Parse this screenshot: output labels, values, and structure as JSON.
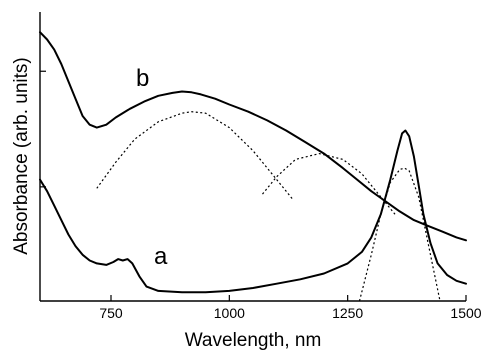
{
  "chart_data": {
    "type": "line",
    "title": "",
    "xlabel": "Wavelength, nm",
    "ylabel": "Absorbance (arb. units)",
    "xlim": [
      600,
      1500
    ],
    "ylim": [
      0,
      1
    ],
    "x_ticks": [
      750,
      1000,
      1250,
      1500
    ],
    "x_tick_labels": [
      "750",
      "1000",
      "1250",
      "1500"
    ],
    "y_ticks": [
      0.395,
      0.795
    ],
    "y_tick_labels": [
      "",
      ""
    ],
    "grid": false,
    "legend": "none",
    "series": [
      {
        "name": "b",
        "style": "solid",
        "x": [
          600,
          615,
          630,
          645,
          660,
          675,
          690,
          705,
          720,
          740,
          760,
          790,
          820,
          850,
          880,
          900,
          920,
          940,
          970,
          1000,
          1040,
          1080,
          1120,
          1160,
          1200,
          1240,
          1270,
          1300,
          1330,
          1360,
          1390,
          1420,
          1450,
          1480,
          1500
        ],
        "y": [
          0.93,
          0.905,
          0.87,
          0.82,
          0.76,
          0.7,
          0.64,
          0.61,
          0.6,
          0.61,
          0.635,
          0.665,
          0.69,
          0.71,
          0.72,
          0.725,
          0.722,
          0.715,
          0.7,
          0.68,
          0.655,
          0.625,
          0.59,
          0.55,
          0.51,
          0.46,
          0.42,
          0.38,
          0.345,
          0.31,
          0.28,
          0.26,
          0.24,
          0.22,
          0.21
        ]
      },
      {
        "name": "a",
        "style": "solid",
        "x": [
          600,
          615,
          630,
          645,
          660,
          675,
          690,
          705,
          720,
          740,
          755,
          765,
          775,
          785,
          795,
          810,
          825,
          850,
          900,
          950,
          1000,
          1050,
          1100,
          1150,
          1200,
          1250,
          1280,
          1300,
          1320,
          1340,
          1355,
          1365,
          1372,
          1380,
          1390,
          1400,
          1410,
          1425,
          1440,
          1460,
          1480,
          1500
        ],
        "y": [
          0.42,
          0.38,
          0.33,
          0.28,
          0.23,
          0.19,
          0.16,
          0.14,
          0.13,
          0.125,
          0.135,
          0.145,
          0.14,
          0.145,
          0.13,
          0.085,
          0.05,
          0.035,
          0.03,
          0.03,
          0.035,
          0.045,
          0.06,
          0.075,
          0.095,
          0.13,
          0.17,
          0.22,
          0.3,
          0.42,
          0.52,
          0.58,
          0.59,
          0.57,
          0.5,
          0.4,
          0.3,
          0.2,
          0.13,
          0.09,
          0.07,
          0.06
        ]
      },
      {
        "name": "",
        "style": "dotted",
        "x": [
          720,
          760,
          800,
          850,
          900,
          920,
          950,
          1000,
          1050,
          1100,
          1135
        ],
        "y": [
          0.39,
          0.48,
          0.56,
          0.62,
          0.65,
          0.655,
          0.65,
          0.6,
          0.52,
          0.42,
          0.35
        ]
      },
      {
        "name": "",
        "style": "dotted",
        "x": [
          1070,
          1100,
          1140,
          1190,
          1240,
          1280,
          1310,
          1350
        ],
        "y": [
          0.37,
          0.43,
          0.49,
          0.51,
          0.49,
          0.44,
          0.38,
          0.3
        ]
      },
      {
        "name": "",
        "style": "dotted",
        "x": [
          1275,
          1300,
          1320,
          1340,
          1360,
          1370,
          1380,
          1400,
          1420,
          1445
        ],
        "y": [
          0.0,
          0.16,
          0.3,
          0.41,
          0.455,
          0.46,
          0.45,
          0.36,
          0.2,
          0.0
        ]
      }
    ],
    "annotations": [
      "b",
      "a"
    ]
  }
}
